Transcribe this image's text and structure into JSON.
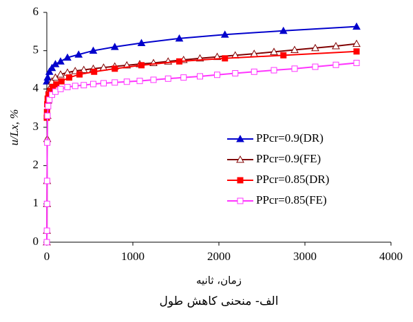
{
  "chart_data": {
    "type": "line",
    "x_label": "زمان، ثانیه",
    "y_label": "u/Lx, %",
    "caption": "الف- منحنی کاهش طول",
    "xlim": [
      0,
      4000
    ],
    "xticks": [
      0,
      1000,
      2000,
      3000,
      4000
    ],
    "ylim": [
      0,
      6
    ],
    "yticks": [
      0,
      1,
      2,
      3,
      4,
      5,
      6
    ],
    "series": [
      {
        "name": "PPcr=0.9(DR)",
        "color": "#0000cc",
        "marker": "triangle",
        "filled": true,
        "x": [
          0,
          10,
          30,
          60,
          100,
          160,
          240,
          370,
          540,
          790,
          1100,
          1540,
          2070,
          2750,
          3600
        ],
        "values": [
          4.2,
          4.3,
          4.45,
          4.55,
          4.65,
          4.72,
          4.82,
          4.9,
          5.0,
          5.1,
          5.2,
          5.32,
          5.42,
          5.52,
          5.63
        ]
      },
      {
        "name": "PPcr=0.9(FE)",
        "color": "#800000",
        "marker": "triangle",
        "filled": false,
        "x": [
          0,
          1,
          2,
          3,
          5,
          8,
          15,
          30,
          60,
          100,
          160,
          240,
          330,
          430,
          540,
          660,
          790,
          930,
          1080,
          1240,
          1410,
          1590,
          1780,
          1980,
          2190,
          2410,
          2640,
          2880,
          3120,
          3360,
          3600
        ],
        "values": [
          0,
          0.3,
          1.0,
          1.6,
          2.7,
          3.3,
          3.7,
          4.0,
          4.2,
          4.3,
          4.38,
          4.43,
          4.47,
          4.5,
          4.53,
          4.56,
          4.59,
          4.62,
          4.65,
          4.68,
          4.72,
          4.76,
          4.8,
          4.84,
          4.88,
          4.92,
          4.97,
          5.02,
          5.07,
          5.12,
          5.18
        ]
      },
      {
        "name": "PPcr=0.85(DR)",
        "color": "#ff0000",
        "marker": "square",
        "filled": true,
        "x": [
          0,
          2,
          5,
          10,
          20,
          40,
          70,
          110,
          170,
          260,
          380,
          550,
          790,
          1100,
          1540,
          2070,
          2750,
          3600
        ],
        "values": [
          3.25,
          3.4,
          3.6,
          3.75,
          3.85,
          3.95,
          4.05,
          4.12,
          4.2,
          4.3,
          4.38,
          4.45,
          4.53,
          4.62,
          4.72,
          4.8,
          4.88,
          4.98
        ]
      },
      {
        "name": "PPcr=0.85(FE)",
        "color": "#ff33ff",
        "marker": "square",
        "filled": false,
        "x": [
          0,
          1,
          2,
          3,
          5,
          8,
          15,
          30,
          60,
          100,
          160,
          240,
          330,
          430,
          540,
          660,
          790,
          930,
          1080,
          1240,
          1410,
          1590,
          1780,
          1980,
          2190,
          2410,
          2640,
          2880,
          3120,
          3360,
          3600
        ],
        "values": [
          0,
          0.3,
          1.0,
          1.6,
          2.6,
          3.3,
          3.55,
          3.72,
          3.85,
          3.93,
          4.0,
          4.05,
          4.08,
          4.1,
          4.13,
          4.15,
          4.17,
          4.19,
          4.21,
          4.24,
          4.27,
          4.3,
          4.33,
          4.37,
          4.41,
          4.45,
          4.49,
          4.53,
          4.58,
          4.63,
          4.68
        ]
      }
    ]
  }
}
